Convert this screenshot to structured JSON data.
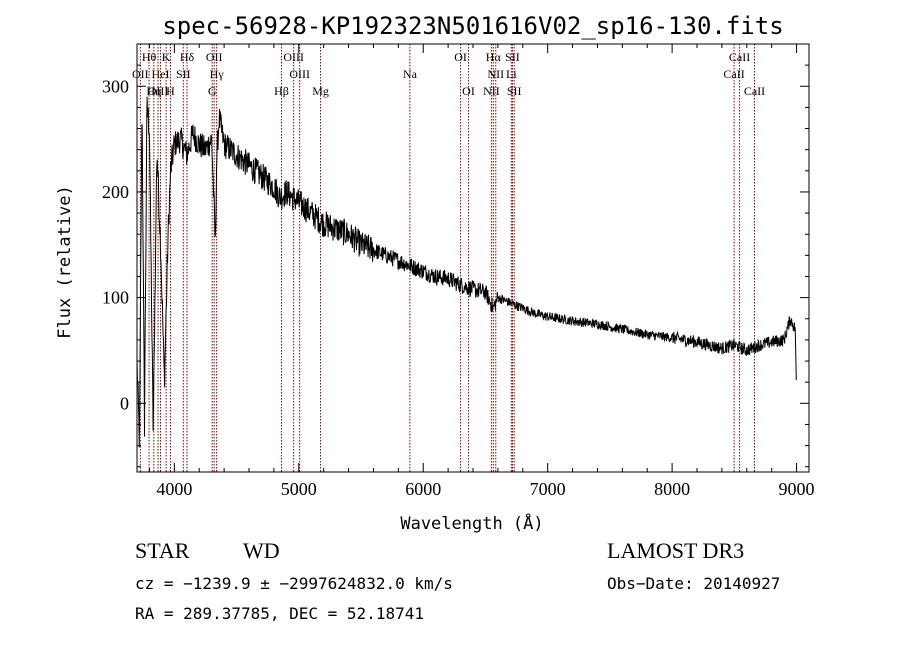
{
  "chart_data": {
    "type": "line",
    "title": "spec-56928-KP192323N501616V02_sp16-130.fits",
    "xlabel": "Wavelength (Å)",
    "ylabel": "Flux (relative)",
    "xlim": [
      3700,
      9100
    ],
    "ylim": [
      -65,
      340
    ],
    "xticks": [
      4000,
      5000,
      6000,
      7000,
      8000,
      9000
    ],
    "yticks": [
      0,
      100,
      200,
      300
    ],
    "series": [
      {
        "name": "spectrum",
        "x": [
          3700,
          3720,
          3740,
          3760,
          3780,
          3800,
          3830,
          3860,
          3890,
          3920,
          3950,
          3970,
          4000,
          4050,
          4100,
          4150,
          4200,
          4250,
          4300,
          4330,
          4340,
          4360,
          4400,
          4450,
          4500,
          4600,
          4700,
          4800,
          4850,
          4900,
          5000,
          5100,
          5200,
          5300,
          5400,
          5500,
          5600,
          5700,
          5800,
          5900,
          6000,
          6100,
          6200,
          6300,
          6400,
          6500,
          6563,
          6600,
          6700,
          6800,
          6900,
          7000,
          7200,
          7400,
          7600,
          7800,
          8000,
          8200,
          8400,
          8500,
          8600,
          8700,
          8800,
          8900,
          8950,
          8990,
          9000
        ],
        "y": [
          40,
          -40,
          290,
          -20,
          280,
          260,
          -30,
          240,
          150,
          20,
          160,
          220,
          245,
          250,
          235,
          255,
          245,
          240,
          250,
          150,
          230,
          270,
          245,
          240,
          235,
          225,
          215,
          205,
          195,
          200,
          190,
          180,
          170,
          165,
          160,
          150,
          145,
          140,
          135,
          130,
          125,
          120,
          118,
          112,
          108,
          105,
          90,
          100,
          95,
          90,
          85,
          82,
          78,
          75,
          70,
          65,
          62,
          58,
          52,
          55,
          50,
          55,
          58,
          60,
          80,
          70,
          5
        ]
      }
    ],
    "lines": [
      {
        "name": "Hθ",
        "x": 3797,
        "row": 0
      },
      {
        "name": "K",
        "x": 3934,
        "row": 0
      },
      {
        "name": "Hδ",
        "x": 4102,
        "row": 0
      },
      {
        "name": "OII",
        "x": 4320,
        "row": 0
      },
      {
        "name": "OIII",
        "x": 4959,
        "row": 0
      },
      {
        "name": "OI",
        "x": 6300,
        "row": 0
      },
      {
        "name": "Hα",
        "x": 6563,
        "row": 0
      },
      {
        "name": "SII",
        "x": 6717,
        "row": 0
      },
      {
        "name": "CaII",
        "x": 8542,
        "row": 0
      },
      {
        "name": "OII",
        "x": 3727,
        "row": 1
      },
      {
        "name": "HeI",
        "x": 3889,
        "row": 1
      },
      {
        "name": "SII",
        "x": 4072,
        "row": 1
      },
      {
        "name": "Hγ",
        "x": 4340,
        "row": 1
      },
      {
        "name": "OIII",
        "x": 5007,
        "row": 1
      },
      {
        "name": "Na",
        "x": 5893,
        "row": 1
      },
      {
        "name": "NII",
        "x": 6583,
        "row": 1
      },
      {
        "name": "Li",
        "x": 6708,
        "row": 1
      },
      {
        "name": "CaII",
        "x": 8498,
        "row": 1
      },
      {
        "name": "OIII",
        "x": 3869,
        "row": 2
      },
      {
        "name": "Hη",
        "x": 3835,
        "row": 2
      },
      {
        "name": "H",
        "x": 3969,
        "row": 2
      },
      {
        "name": "G",
        "x": 4304,
        "row": 2
      },
      {
        "name": "Hβ",
        "x": 4861,
        "row": 2
      },
      {
        "name": "Mg",
        "x": 5175,
        "row": 2
      },
      {
        "name": "OI",
        "x": 6364,
        "row": 2
      },
      {
        "name": "NII",
        "x": 6548,
        "row": 2
      },
      {
        "name": "SII",
        "x": 6731,
        "row": 2
      },
      {
        "name": "CaII",
        "x": 8662,
        "row": 2
      }
    ],
    "line_color": "#000000",
    "marker_color": "#8b0000"
  },
  "info": {
    "object_class": "STAR",
    "subclass": "WD",
    "survey": "LAMOST DR3",
    "velocity": "cz = −1239.9 ± −2997624832.0 km/s",
    "obs_date": "Obs−Date: 20140927",
    "coords": "RA = 289.37785, DEC =  52.18741"
  }
}
